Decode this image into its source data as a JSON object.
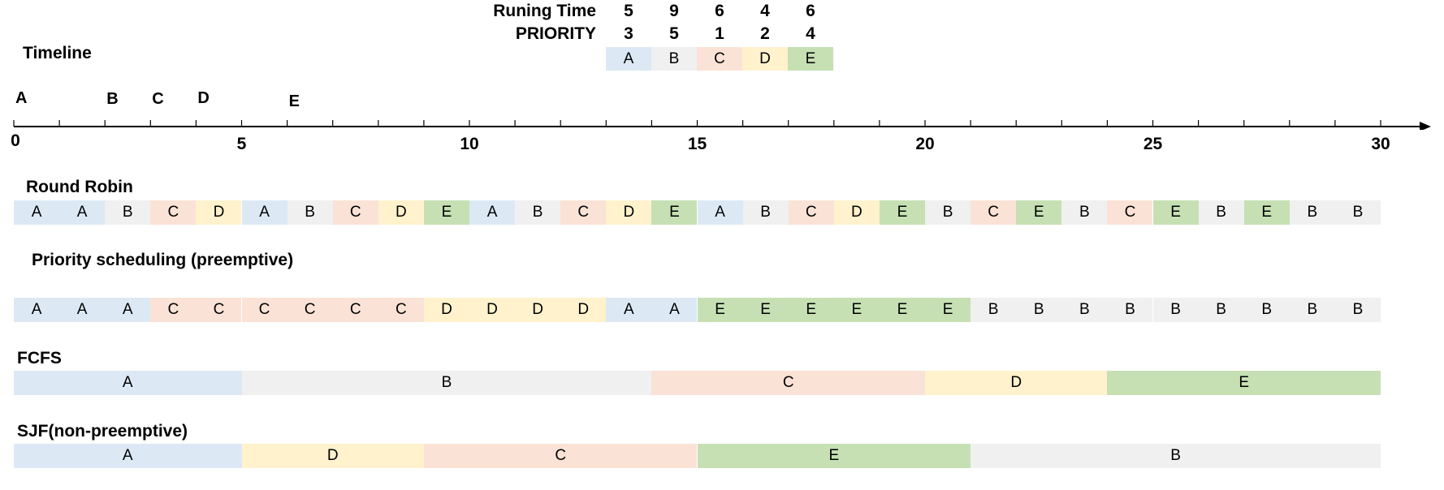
{
  "colors": {
    "A": "#dce9f5",
    "B": "#f0f0f0",
    "C": "#fbe2d6",
    "D": "#fff2cc",
    "E": "#c6e0b4"
  },
  "header": {
    "running_time_label": "Runing Time",
    "priority_label": "PRIORITY",
    "processes": [
      {
        "name": "A",
        "running_time": "5",
        "priority": "3"
      },
      {
        "name": "B",
        "running_time": "9",
        "priority": "5"
      },
      {
        "name": "C",
        "running_time": "6",
        "priority": "1"
      },
      {
        "name": "D",
        "running_time": "4",
        "priority": "2"
      },
      {
        "name": "E",
        "running_time": "6",
        "priority": "4"
      }
    ]
  },
  "timeline": {
    "title": "Timeline",
    "arrivals": [
      {
        "name": "A",
        "time": 0
      },
      {
        "name": "B",
        "time": 2
      },
      {
        "name": "C",
        "time": 3
      },
      {
        "name": "D",
        "time": 4
      },
      {
        "name": "E",
        "time": 6
      }
    ],
    "max": 30,
    "labels": [
      "0",
      "5",
      "10",
      "15",
      "20",
      "25",
      "30"
    ]
  },
  "schedules": [
    {
      "title": "Round Robin",
      "segments": [
        {
          "p": "A",
          "s": 0,
          "e": 1
        },
        {
          "p": "A",
          "s": 1,
          "e": 2
        },
        {
          "p": "B",
          "s": 2,
          "e": 3
        },
        {
          "p": "C",
          "s": 3,
          "e": 4
        },
        {
          "p": "D",
          "s": 4,
          "e": 5
        },
        {
          "p": "A",
          "s": 5,
          "e": 6
        },
        {
          "p": "B",
          "s": 6,
          "e": 7
        },
        {
          "p": "C",
          "s": 7,
          "e": 8
        },
        {
          "p": "D",
          "s": 8,
          "e": 9
        },
        {
          "p": "E",
          "s": 9,
          "e": 10
        },
        {
          "p": "A",
          "s": 10,
          "e": 11
        },
        {
          "p": "B",
          "s": 11,
          "e": 12
        },
        {
          "p": "C",
          "s": 12,
          "e": 13
        },
        {
          "p": "D",
          "s": 13,
          "e": 14
        },
        {
          "p": "E",
          "s": 14,
          "e": 15
        },
        {
          "p": "A",
          "s": 15,
          "e": 16
        },
        {
          "p": "B",
          "s": 16,
          "e": 17
        },
        {
          "p": "C",
          "s": 17,
          "e": 18
        },
        {
          "p": "D",
          "s": 18,
          "e": 19
        },
        {
          "p": "E",
          "s": 19,
          "e": 20
        },
        {
          "p": "B",
          "s": 20,
          "e": 21
        },
        {
          "p": "C",
          "s": 21,
          "e": 22
        },
        {
          "p": "E",
          "s": 22,
          "e": 23
        },
        {
          "p": "B",
          "s": 23,
          "e": 24
        },
        {
          "p": "C",
          "s": 24,
          "e": 25
        },
        {
          "p": "E",
          "s": 25,
          "e": 26
        },
        {
          "p": "B",
          "s": 26,
          "e": 27
        },
        {
          "p": "E",
          "s": 27,
          "e": 28
        },
        {
          "p": "B",
          "s": 28,
          "e": 29
        },
        {
          "p": "B",
          "s": 29,
          "e": 30
        }
      ]
    },
    {
      "title": "Priority scheduling (preemptive)",
      "segments": [
        {
          "p": "A",
          "s": 0,
          "e": 1
        },
        {
          "p": "A",
          "s": 1,
          "e": 2
        },
        {
          "p": "A",
          "s": 2,
          "e": 3
        },
        {
          "p": "C",
          "s": 3,
          "e": 4
        },
        {
          "p": "C",
          "s": 4,
          "e": 5
        },
        {
          "p": "C",
          "s": 5,
          "e": 6
        },
        {
          "p": "C",
          "s": 6,
          "e": 7
        },
        {
          "p": "C",
          "s": 7,
          "e": 8
        },
        {
          "p": "C",
          "s": 8,
          "e": 9
        },
        {
          "p": "D",
          "s": 9,
          "e": 10
        },
        {
          "p": "D",
          "s": 10,
          "e": 11
        },
        {
          "p": "D",
          "s": 11,
          "e": 12
        },
        {
          "p": "D",
          "s": 12,
          "e": 13
        },
        {
          "p": "A",
          "s": 13,
          "e": 14
        },
        {
          "p": "A",
          "s": 14,
          "e": 15
        },
        {
          "p": "E",
          "s": 15,
          "e": 16
        },
        {
          "p": "E",
          "s": 16,
          "e": 17
        },
        {
          "p": "E",
          "s": 17,
          "e": 18
        },
        {
          "p": "E",
          "s": 18,
          "e": 19
        },
        {
          "p": "E",
          "s": 19,
          "e": 20
        },
        {
          "p": "E",
          "s": 20,
          "e": 21
        },
        {
          "p": "B",
          "s": 21,
          "e": 22
        },
        {
          "p": "B",
          "s": 22,
          "e": 23
        },
        {
          "p": "B",
          "s": 23,
          "e": 24
        },
        {
          "p": "B",
          "s": 24,
          "e": 25
        },
        {
          "p": "B",
          "s": 25,
          "e": 26
        },
        {
          "p": "B",
          "s": 26,
          "e": 27
        },
        {
          "p": "B",
          "s": 27,
          "e": 28
        },
        {
          "p": "B",
          "s": 28,
          "e": 29
        },
        {
          "p": "B",
          "s": 29,
          "e": 30
        }
      ]
    },
    {
      "title": "FCFS",
      "segments": [
        {
          "p": "A",
          "s": 0,
          "e": 5
        },
        {
          "p": "B",
          "s": 5,
          "e": 14
        },
        {
          "p": "C",
          "s": 14,
          "e": 20
        },
        {
          "p": "D",
          "s": 20,
          "e": 24
        },
        {
          "p": "E",
          "s": 24,
          "e": 30
        }
      ]
    },
    {
      "title": "SJF(non-preemptive)",
      "segments": [
        {
          "p": "A",
          "s": 0,
          "e": 5
        },
        {
          "p": "D",
          "s": 5,
          "e": 9
        },
        {
          "p": "C",
          "s": 9,
          "e": 15
        },
        {
          "p": "E",
          "s": 15,
          "e": 21
        },
        {
          "p": "B",
          "s": 21,
          "e": 30
        }
      ]
    }
  ]
}
